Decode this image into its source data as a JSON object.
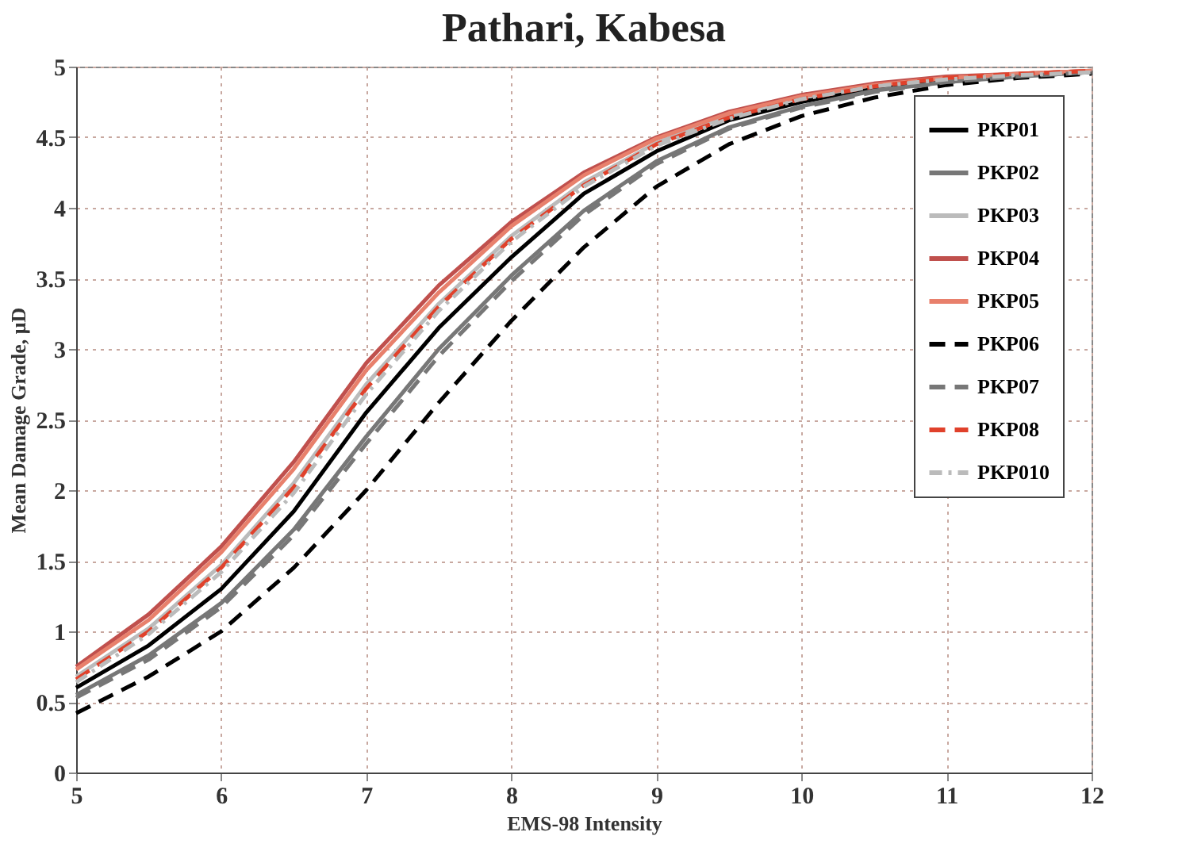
{
  "chart_data": {
    "type": "line",
    "title": "Pathari, Kabesa",
    "xlabel": "EMS-98 Intensity",
    "ylabel": "Mean Damage Grade, μD",
    "x": [
      5,
      5.5,
      6,
      6.5,
      7,
      7.5,
      8,
      8.5,
      9,
      9.5,
      10,
      10.5,
      11,
      11.5,
      12
    ],
    "xlim": [
      5,
      12
    ],
    "xticks": [
      5,
      6,
      7,
      8,
      9,
      10,
      11,
      12
    ],
    "ylim": [
      0,
      5
    ],
    "yticks": [
      0,
      0.5,
      1,
      1.5,
      2,
      2.5,
      3,
      3.5,
      4,
      4.5,
      5
    ],
    "grid": true,
    "legend": "top right",
    "marker": "none",
    "series": [
      {
        "name": "PKP01",
        "color": "#000000",
        "line_style": "solid",
        "values": [
          0.6,
          0.9,
          1.3,
          1.85,
          2.55,
          3.15,
          3.65,
          4.1,
          4.4,
          4.62,
          4.75,
          4.85,
          4.9,
          4.94,
          4.96
        ]
      },
      {
        "name": "PKP02",
        "color": "#777777",
        "line_style": "solid",
        "values": [
          0.55,
          0.83,
          1.2,
          1.72,
          2.38,
          3.0,
          3.52,
          3.98,
          4.33,
          4.57,
          4.72,
          4.83,
          4.89,
          4.93,
          4.96
        ]
      },
      {
        "name": "PKP03",
        "color": "#bbbbbb",
        "line_style": "solid",
        "values": [
          0.68,
          1.02,
          1.47,
          2.05,
          2.75,
          3.32,
          3.8,
          4.18,
          4.46,
          4.65,
          4.78,
          4.87,
          4.92,
          4.95,
          4.97
        ]
      },
      {
        "name": "PKP04",
        "color": "#c0504d",
        "line_style": "solid",
        "values": [
          0.75,
          1.12,
          1.6,
          2.2,
          2.9,
          3.45,
          3.9,
          4.25,
          4.5,
          4.68,
          4.8,
          4.88,
          4.93,
          4.95,
          4.97
        ]
      },
      {
        "name": "PKP05",
        "color": "#e8806c",
        "line_style": "solid",
        "values": [
          0.73,
          1.08,
          1.56,
          2.15,
          2.85,
          3.4,
          3.87,
          4.23,
          4.49,
          4.67,
          4.79,
          4.87,
          4.92,
          4.95,
          4.97
        ]
      },
      {
        "name": "PKP06",
        "color": "#000000",
        "line_style": "dashed",
        "values": [
          0.42,
          0.68,
          1.0,
          1.45,
          2.0,
          2.62,
          3.2,
          3.72,
          4.15,
          4.45,
          4.65,
          4.78,
          4.87,
          4.92,
          4.95
        ]
      },
      {
        "name": "PKP07",
        "color": "#777777",
        "line_style": "dashed",
        "values": [
          0.53,
          0.8,
          1.17,
          1.68,
          2.33,
          2.95,
          3.48,
          3.95,
          4.31,
          4.56,
          4.71,
          4.82,
          4.89,
          4.93,
          4.96
        ]
      },
      {
        "name": "PKP08",
        "color": "#e0412b",
        "line_style": "dashed",
        "values": [
          0.66,
          1.0,
          1.45,
          2.02,
          2.72,
          3.3,
          3.78,
          4.16,
          4.45,
          4.64,
          4.77,
          4.86,
          4.92,
          4.95,
          4.97
        ]
      },
      {
        "name": "PKP010",
        "color": "#bbbbbb",
        "line_style": "dotted",
        "values": [
          0.64,
          0.98,
          1.42,
          1.98,
          2.68,
          3.27,
          3.76,
          4.15,
          4.44,
          4.63,
          4.77,
          4.86,
          4.91,
          4.94,
          4.96
        ]
      }
    ]
  }
}
